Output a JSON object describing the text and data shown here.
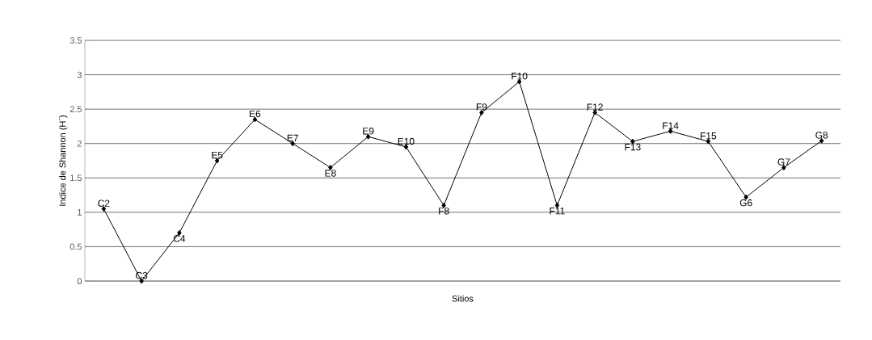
{
  "chart_data": {
    "type": "line",
    "xlabel": "Sitios",
    "ylabel": "Indice de Shannon (H´)",
    "categories": [
      "C2",
      "C3",
      "C4",
      "E5",
      "E6",
      "E7",
      "E8",
      "E9",
      "E10",
      "F8",
      "F9",
      "F10",
      "F11",
      "F12",
      "F13",
      "F14",
      "F15",
      "G6",
      "G7",
      "G8"
    ],
    "values": [
      1.05,
      0,
      0.7,
      1.75,
      2.35,
      2,
      1.65,
      2.1,
      1.95,
      1.1,
      2.45,
      2.9,
      1.1,
      2.45,
      2.03,
      2.18,
      2.03,
      1.22,
      1.65,
      2.04
    ],
    "color": "#000000",
    "marker": "diamond",
    "line_style": "solid",
    "ylim": [
      0,
      3.5
    ],
    "yticks": [
      0,
      0.5,
      1,
      1.5,
      2,
      2.5,
      3,
      3.5
    ],
    "grid": "y"
  }
}
